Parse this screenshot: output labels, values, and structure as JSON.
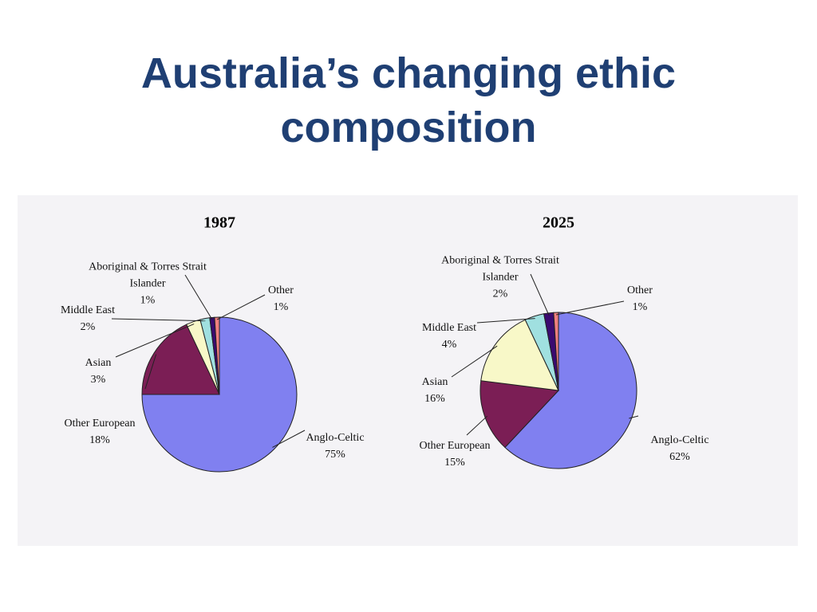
{
  "title": "Australia’s changing ethic composition",
  "chart_data": [
    {
      "type": "pie",
      "title": "1987",
      "categories": [
        "Anglo-Celtic",
        "Other European",
        "Asian",
        "Middle East",
        "Aboriginal & Torres Strait Islander",
        "Other"
      ],
      "values": [
        75,
        18,
        3,
        2,
        1,
        1
      ],
      "value_labels": [
        "75%",
        "18%",
        "3%",
        "2%",
        "1%",
        "1%"
      ],
      "colors": [
        "#8080f0",
        "#7b1e55",
        "#f8f8c8",
        "#a0e0e0",
        "#3a0a70",
        "#f08080"
      ]
    },
    {
      "type": "pie",
      "title": "2025",
      "categories": [
        "Anglo-Celtic",
        "Other European",
        "Asian",
        "Middle East",
        "Aboriginal & Torres Strait Islander",
        "Other"
      ],
      "values": [
        62,
        15,
        16,
        4,
        2,
        1
      ],
      "value_labels": [
        "62%",
        "15%",
        "16%",
        "4%",
        "2%",
        "1%"
      ],
      "colors": [
        "#8080f0",
        "#7b1e55",
        "#f8f8c8",
        "#a0e0e0",
        "#3a0a70",
        "#f08080"
      ]
    }
  ]
}
